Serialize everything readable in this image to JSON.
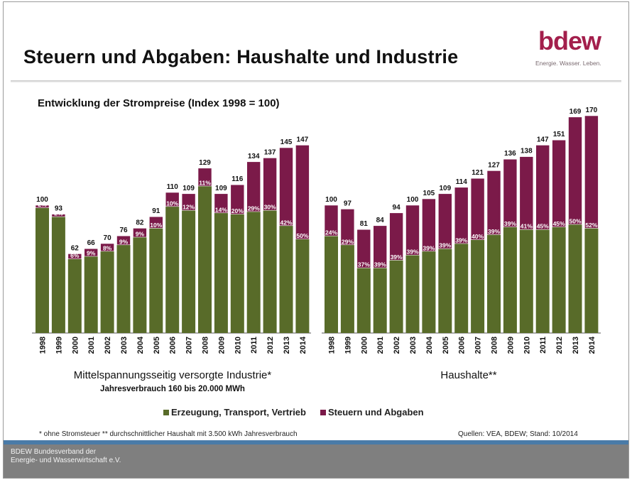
{
  "slide": {
    "title": "Steuern und Abgaben: Haushalte und Industrie",
    "logo": "bdew",
    "logo_tagline": "Energie. Wasser. Leben."
  },
  "chart_title": "Entwicklung der Strompreise (Index 1998 = 100)",
  "legend": {
    "base_label": "Erzeugung, Transport, Vertrieb",
    "tax_label": "Steuern und Abgaben"
  },
  "colors": {
    "base": "#586b29",
    "tax": "#7b1a49",
    "blue_bar": "#4a7ba8",
    "footer": "#7f7f7f"
  },
  "chart_data": [
    {
      "type": "bar",
      "stacked": true,
      "title": "Mittelspannungsseitig versorgte Industrie*",
      "subtitle": "Jahresverbrauch 160 bis 20.000 MWh",
      "categories": [
        "1998",
        "1999",
        "2000",
        "2001",
        "2002",
        "2003",
        "2004",
        "2005",
        "2006",
        "2007",
        "2008",
        "2009",
        "2010",
        "2011",
        "2012",
        "2013",
        "2014"
      ],
      "totals": [
        100,
        93,
        62,
        66,
        70,
        76,
        82,
        91,
        110,
        109,
        129,
        109,
        116,
        134,
        137,
        145,
        147
      ],
      "tax_share_labels": [
        "2%",
        "2%",
        "6%",
        "9%",
        "8%",
        "9%",
        "9%",
        "10%",
        "10%",
        "12%",
        "11%",
        "14%",
        "20%",
        "29%",
        "30%",
        "42%",
        "50%"
      ],
      "series": [
        {
          "name": "Erzeugung, Transport, Vertrieb",
          "values": [
            98,
            91,
            58,
            60,
            64,
            69,
            75,
            82,
            99,
            96,
            115,
            94,
            93,
            95,
            96,
            84,
            73.5
          ]
        },
        {
          "name": "Steuern und Abgaben",
          "values": [
            2,
            2,
            4,
            6,
            6,
            7,
            7,
            9,
            11,
            13,
            14,
            15,
            23,
            39,
            41,
            61,
            73.5
          ]
        }
      ],
      "ylim": [
        0,
        180
      ]
    },
    {
      "type": "bar",
      "stacked": true,
      "title": "Haushalte**",
      "categories": [
        "1998",
        "1999",
        "2000",
        "2001",
        "2002",
        "2003",
        "2004",
        "2005",
        "2006",
        "2007",
        "2008",
        "2009",
        "2010",
        "2011",
        "2012",
        "2013",
        "2014"
      ],
      "totals": [
        100,
        97,
        81,
        84,
        94,
        100,
        105,
        109,
        114,
        121,
        127,
        136,
        138,
        147,
        151,
        169,
        170
      ],
      "tax_share_labels": [
        "24%",
        "29%",
        "37%",
        "39%",
        "39%",
        "39%",
        "39%",
        "39%",
        "39%",
        "40%",
        "39%",
        "39%",
        "41%",
        "45%",
        "45%",
        "50%",
        "52%"
      ],
      "series": [
        {
          "name": "Erzeugung, Transport, Vertrieb",
          "values": [
            76,
            69,
            51,
            51,
            57,
            61,
            64,
            66,
            70,
            73,
            77,
            83,
            81,
            81,
            83,
            85,
            82
          ]
        },
        {
          "name": "Steuern und Abgaben",
          "values": [
            24,
            28,
            30,
            33,
            37,
            39,
            41,
            43,
            44,
            48,
            50,
            53,
            57,
            66,
            68,
            84,
            88
          ]
        }
      ],
      "ylim": [
        0,
        180
      ]
    }
  ],
  "footnote": "* ohne Stromsteuer  ** durchschnittlicher Haushalt mit 3.500 kWh Jahresverbrauch",
  "sources": "Quellen: VEA, BDEW; Stand: 10/2014",
  "footer": {
    "line1": "BDEW Bundesverband der",
    "line2": "Energie- und Wasserwirtschaft e.V."
  }
}
